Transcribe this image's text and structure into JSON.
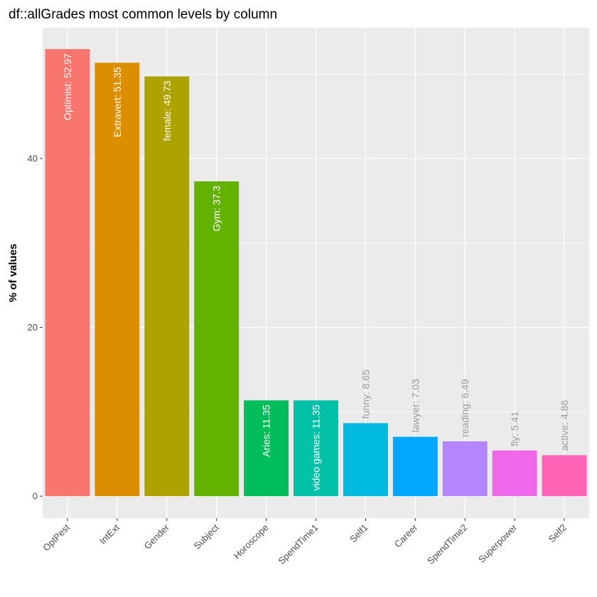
{
  "chart_data": {
    "type": "bar",
    "title": "df::allGrades most common levels by column",
    "xlabel": "",
    "ylabel": "% of values",
    "ylim": [
      -2.6,
      55.5
    ],
    "yticks": [
      0,
      20,
      40
    ],
    "grid": true,
    "legend": "none",
    "background": "#ebebeb",
    "categories": [
      "OptPest",
      "IntExt",
      "Gender",
      "Subject",
      "Horoscope",
      "SpendTime1",
      "Self1",
      "Career",
      "SpendTime2",
      "Superpower",
      "Self2"
    ],
    "values": [
      52.97,
      51.35,
      49.73,
      37.3,
      11.35,
      11.35,
      8.65,
      7.03,
      6.49,
      5.41,
      4.86
    ],
    "levels": [
      "Optimist",
      "Extravert",
      "female",
      "Gym",
      "Aries",
      "video games",
      "funny",
      "lawyer",
      "reading",
      "fly",
      "active"
    ],
    "labels": [
      "Optimist:  52.97",
      "Extravert:  51.35",
      "female:  49.73",
      "Gym:  37.3",
      "Aries:  11.35",
      "video games:  11.35",
      "funny:  8.65",
      "lawyer:  7.03",
      "reading:  6.49",
      "fly:  5.41",
      "active:  4.86"
    ],
    "colors": [
      "#F8766D",
      "#DB8E00",
      "#AEA200",
      "#64B200",
      "#00BD5C",
      "#00C1A7",
      "#00BADE",
      "#00A6FF",
      "#B385FF",
      "#EF67EB",
      "#FF63B6"
    ]
  }
}
